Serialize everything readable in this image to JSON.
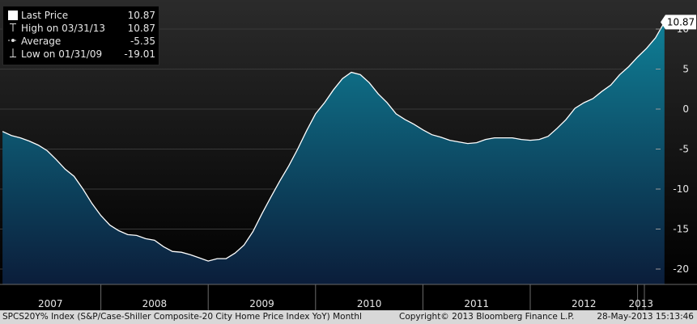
{
  "chart_data": {
    "type": "area",
    "title": "",
    "xlabel": "",
    "ylabel": "",
    "ylim": [
      -21,
      12
    ],
    "y_ticks": [
      10,
      5,
      0,
      -5,
      -10,
      -15,
      -20
    ],
    "x_year_labels": [
      "2007",
      "2008",
      "2009",
      "2010",
      "2011",
      "2012",
      "2013"
    ],
    "series": [
      {
        "name": "Last Price",
        "color": "#ffffff",
        "fill_top": "#0f7f96",
        "fill_bottom": "#0b1d3a",
        "x": [
          "2007-01",
          "2007-02",
          "2007-03",
          "2007-04",
          "2007-05",
          "2007-06",
          "2007-07",
          "2007-08",
          "2007-09",
          "2007-10",
          "2007-11",
          "2007-12",
          "2008-01",
          "2008-02",
          "2008-03",
          "2008-04",
          "2008-05",
          "2008-06",
          "2008-07",
          "2008-08",
          "2008-09",
          "2008-10",
          "2008-11",
          "2008-12",
          "2009-01",
          "2009-02",
          "2009-03",
          "2009-04",
          "2009-05",
          "2009-06",
          "2009-07",
          "2009-08",
          "2009-09",
          "2009-10",
          "2009-11",
          "2009-12",
          "2010-01",
          "2010-02",
          "2010-03",
          "2010-04",
          "2010-05",
          "2010-06",
          "2010-07",
          "2010-08",
          "2010-09",
          "2010-10",
          "2010-11",
          "2010-12",
          "2011-01",
          "2011-02",
          "2011-03",
          "2011-04",
          "2011-05",
          "2011-06",
          "2011-07",
          "2011-08",
          "2011-09",
          "2011-10",
          "2011-11",
          "2011-12",
          "2012-01",
          "2012-02",
          "2012-03",
          "2012-04",
          "2012-05",
          "2012-06",
          "2012-07",
          "2012-08",
          "2012-09",
          "2012-10",
          "2012-11",
          "2012-12",
          "2013-01",
          "2013-02",
          "2013-03"
        ],
        "values": [
          -2.8,
          -3.3,
          -3.6,
          -4.0,
          -4.5,
          -5.2,
          -6.3,
          -7.5,
          -8.4,
          -10.0,
          -11.8,
          -13.3,
          -14.5,
          -15.2,
          -15.7,
          -15.8,
          -16.2,
          -16.4,
          -17.2,
          -17.8,
          -17.9,
          -18.2,
          -18.6,
          -19.0,
          -18.7,
          -18.7,
          -18.0,
          -17.0,
          -15.3,
          -13.1,
          -11.0,
          -9.0,
          -7.1,
          -5.0,
          -2.7,
          -0.6,
          0.8,
          2.4,
          3.8,
          4.6,
          4.3,
          3.3,
          1.9,
          0.8,
          -0.6,
          -1.3,
          -1.9,
          -2.6,
          -3.2,
          -3.5,
          -3.9,
          -4.1,
          -4.3,
          -4.2,
          -3.8,
          -3.6,
          -3.6,
          -3.6,
          -3.8,
          -3.9,
          -3.8,
          -3.4,
          -2.4,
          -1.3,
          0.1,
          0.8,
          1.3,
          2.2,
          3.0,
          4.3,
          5.3,
          6.5,
          7.6,
          8.9,
          10.87
        ]
      }
    ],
    "last_value_label": "10.87"
  },
  "legend": {
    "rows": [
      {
        "label": "Last Price",
        "value": "10.87",
        "icon": "square-icon"
      },
      {
        "label": "High on 03/31/13",
        "value": "10.87",
        "icon": "high-marker-icon"
      },
      {
        "label": "Average",
        "value": "-5.35",
        "icon": "average-marker-icon"
      },
      {
        "label": "Low on 01/31/09",
        "value": "-19.01",
        "icon": "low-marker-icon"
      }
    ]
  },
  "footer": {
    "ticker": "SPCS20Y% Index (S&P/Case-Shiller Composite-20 City Home Price Index YoY)  Monthl",
    "copyright": "Copyright© 2013 Bloomberg Finance L.P.",
    "timestamp": "28-May-2013 15:13:46"
  }
}
